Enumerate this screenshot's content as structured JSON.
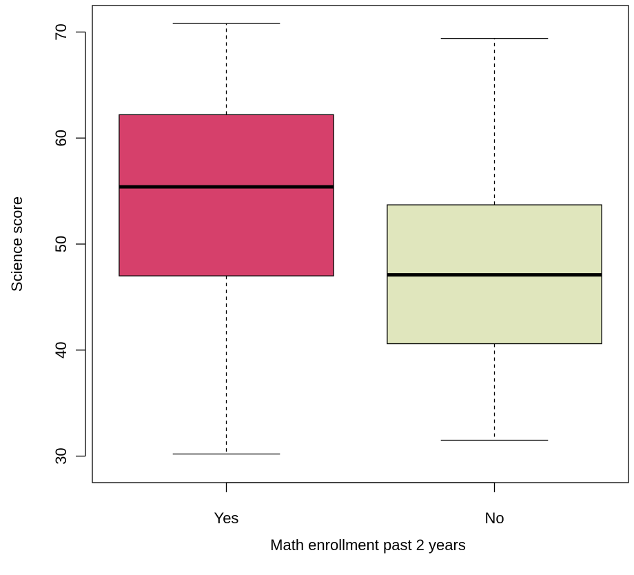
{
  "chart_data": {
    "type": "boxplot",
    "title": "",
    "xlabel": "Math enrollment past 2 years",
    "ylabel": "Science score",
    "ylim": [
      27.5,
      72.5
    ],
    "y_ticks": [
      30,
      40,
      50,
      60,
      70
    ],
    "y_tick_labels": [
      "30",
      "40",
      "50",
      "60",
      "70"
    ],
    "grid": false,
    "categories": [
      "Yes",
      "No"
    ],
    "boxes": [
      {
        "category": "Yes",
        "min": 30.2,
        "q1": 47.0,
        "median": 55.4,
        "q3": 62.2,
        "max": 70.8,
        "color": "#d6406b"
      },
      {
        "category": "No",
        "min": 31.5,
        "q1": 40.6,
        "median": 47.1,
        "q3": 53.7,
        "max": 69.4,
        "color": "#e0e6bd"
      }
    ]
  }
}
